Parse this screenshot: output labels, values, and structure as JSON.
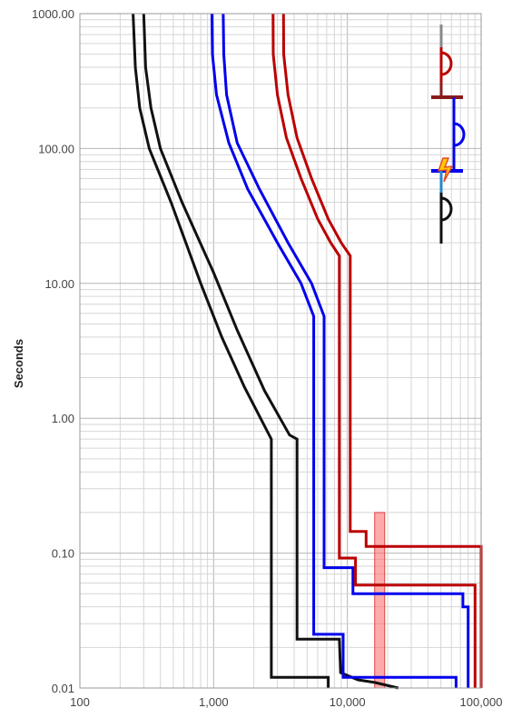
{
  "chart_data": {
    "type": "line",
    "title": "",
    "xlabel": "",
    "ylabel": "Seconds",
    "x_scale": "log",
    "y_scale": "log",
    "xlim": [
      100,
      100000
    ],
    "ylim": [
      0.01,
      1000
    ],
    "grid": true,
    "x_ticks": [
      {
        "value": 100,
        "label": "100"
      },
      {
        "value": 1000,
        "label": "1,000"
      },
      {
        "value": 10000,
        "label": "10,000"
      },
      {
        "value": 100000,
        "label": "100,000"
      }
    ],
    "y_ticks": [
      {
        "value": 0.01,
        "label": "0.01"
      },
      {
        "value": 0.1,
        "label": "0.10"
      },
      {
        "value": 1,
        "label": "1.00"
      },
      {
        "value": 10,
        "label": "10.00"
      },
      {
        "value": 100,
        "label": "100.00"
      },
      {
        "value": 1000,
        "label": "1000.00"
      }
    ],
    "series": [
      {
        "color": "#111111",
        "points": [
          [
            250,
            1000
          ],
          [
            260,
            400
          ],
          [
            280,
            200
          ],
          [
            330,
            100
          ],
          [
            480,
            40
          ],
          [
            800,
            10
          ],
          [
            1150,
            4
          ],
          [
            1700,
            1.7
          ],
          [
            2700,
            0.7
          ],
          [
            2700,
            0.012
          ],
          [
            7200,
            0.012
          ],
          [
            7200,
            0.01
          ]
        ]
      },
      {
        "color": "#111111",
        "points": [
          [
            300,
            1000
          ],
          [
            310,
            400
          ],
          [
            340,
            200
          ],
          [
            400,
            100
          ],
          [
            580,
            40
          ],
          [
            1000,
            12
          ],
          [
            1500,
            4.5
          ],
          [
            2400,
            1.6
          ],
          [
            3700,
            0.75
          ],
          [
            4200,
            0.7
          ],
          [
            4200,
            0.023
          ],
          [
            8700,
            0.023
          ],
          [
            8900,
            0.013
          ],
          [
            12000,
            0.0115
          ],
          [
            16000,
            0.011
          ],
          [
            24000,
            0.01
          ]
        ]
      },
      {
        "color": "#0000ee",
        "points": [
          [
            970,
            1000
          ],
          [
            980,
            500
          ],
          [
            1050,
            250
          ],
          [
            1300,
            110
          ],
          [
            1800,
            50
          ],
          [
            3000,
            20
          ],
          [
            4500,
            10
          ],
          [
            5600,
            5.7
          ],
          [
            5600,
            0.025
          ],
          [
            9300,
            0.025
          ],
          [
            9300,
            0.012
          ],
          [
            65000,
            0.012
          ],
          [
            65000,
            0.01
          ]
        ]
      },
      {
        "color": "#0000ee",
        "points": [
          [
            1180,
            1000
          ],
          [
            1190,
            500
          ],
          [
            1250,
            250
          ],
          [
            1500,
            110
          ],
          [
            2200,
            50
          ],
          [
            3600,
            20
          ],
          [
            5400,
            10
          ],
          [
            6700,
            5.7
          ],
          [
            6700,
            0.078
          ],
          [
            11000,
            0.078
          ],
          [
            11000,
            0.05
          ],
          [
            73000,
            0.05
          ],
          [
            73000,
            0.04
          ],
          [
            80000,
            0.04
          ],
          [
            80000,
            0.01
          ]
        ]
      },
      {
        "color": "#bb0000",
        "points": [
          [
            2780,
            1000
          ],
          [
            2790,
            500
          ],
          [
            3000,
            250
          ],
          [
            3500,
            120
          ],
          [
            4500,
            60
          ],
          [
            6000,
            30
          ],
          [
            7500,
            20
          ],
          [
            8700,
            16
          ],
          [
            8700,
            0.092
          ],
          [
            11500,
            0.092
          ],
          [
            11500,
            0.058
          ],
          [
            90000,
            0.058
          ],
          [
            90000,
            0.01
          ]
        ]
      },
      {
        "color": "#bb0000",
        "points": [
          [
            3330,
            1000
          ],
          [
            3340,
            500
          ],
          [
            3600,
            250
          ],
          [
            4200,
            120
          ],
          [
            5400,
            60
          ],
          [
            7200,
            30
          ],
          [
            9000,
            20
          ],
          [
            10500,
            16
          ],
          [
            10500,
            0.145
          ],
          [
            13800,
            0.145
          ],
          [
            13800,
            0.112
          ],
          [
            100000,
            0.112
          ],
          [
            100000,
            0.01
          ]
        ]
      }
    ],
    "highlight_band": {
      "x_range": [
        16000,
        19000
      ],
      "y_range": [
        0.01,
        0.2
      ],
      "color": "#ff6666"
    },
    "legend_symbols": {
      "colors": [
        "#888888",
        "#bb0000",
        "#8b1a1a",
        "#0000ee",
        "#0000ee",
        "#111111"
      ],
      "icons": [
        "fuse-symbol-icon",
        "breaker-bar-icon",
        "breaker-arc-icon",
        "fault-lightning-icon",
        "relay-arc-icon"
      ]
    }
  }
}
